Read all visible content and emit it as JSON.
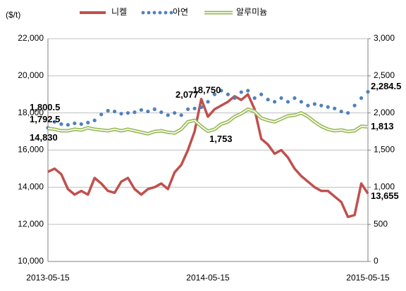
{
  "chart_data": {
    "type": "line",
    "y_axis_label": "($/t)",
    "categories": [
      "2013-05-15",
      null,
      null,
      null,
      null,
      null,
      null,
      null,
      null,
      null,
      null,
      null,
      null,
      null,
      null,
      null,
      null,
      null,
      null,
      null,
      null,
      null,
      null,
      null,
      "2014-05-15",
      null,
      null,
      null,
      null,
      null,
      null,
      null,
      null,
      null,
      null,
      null,
      null,
      null,
      null,
      null,
      null,
      null,
      null,
      null,
      null,
      null,
      null,
      null,
      "2015-05-15"
    ],
    "series": [
      {
        "name": "니켈",
        "color": "#c0504d",
        "style": "thick",
        "values": [
          14830,
          15000,
          14700,
          13900,
          13600,
          13800,
          13600,
          14500,
          14200,
          13800,
          13700,
          14300,
          14500,
          13900,
          13600,
          13900,
          14000,
          14200,
          13900,
          14800,
          15200,
          16000,
          17000,
          18750,
          17800,
          18200,
          18400,
          18600,
          18900,
          18700,
          19000,
          18200,
          16600,
          16300,
          15800,
          16000,
          15600,
          15000,
          14600,
          14300,
          14000,
          13800,
          13800,
          13500,
          13200,
          12400,
          12500,
          14200,
          13655
        ],
        "value_labels": [
          "14,830",
          null,
          null,
          null,
          null,
          null,
          null,
          null,
          null,
          null,
          null,
          null,
          null,
          null,
          null,
          null,
          null,
          null,
          null,
          null,
          null,
          null,
          null,
          "18,750",
          null,
          null,
          null,
          null,
          null,
          null,
          null,
          null,
          null,
          null,
          null,
          null,
          null,
          null,
          null,
          null,
          null,
          null,
          null,
          null,
          null,
          null,
          null,
          null,
          "13,655"
        ]
      },
      {
        "name": "아연",
        "color": "#4f81bd",
        "style": "dots",
        "axis": "y2",
        "values": [
          1800.5,
          1880,
          1850,
          1840,
          1860,
          1850,
          1870,
          1900,
          1980,
          2030,
          2020,
          1990,
          2000,
          2010,
          2040,
          2020,
          2050,
          2010,
          1970,
          2000,
          1970,
          2050,
          2060,
          2077,
          2150,
          2250,
          2300,
          2250,
          2200,
          2280,
          2300,
          2200,
          2250,
          2180,
          2150,
          2200,
          2150,
          2200,
          2150,
          2100,
          2120,
          2100,
          2080,
          2060,
          2020,
          2000,
          2100,
          2200,
          2284.5
        ],
        "value_labels": [
          "1,800.5",
          null,
          null,
          null,
          null,
          null,
          null,
          null,
          null,
          null,
          null,
          null,
          null,
          null,
          null,
          null,
          null,
          null,
          null,
          null,
          null,
          null,
          null,
          "2,077",
          null,
          null,
          null,
          null,
          null,
          null,
          null,
          null,
          null,
          null,
          null,
          null,
          null,
          null,
          null,
          null,
          null,
          null,
          null,
          null,
          null,
          null,
          null,
          null,
          "2,284.5"
        ]
      },
      {
        "name": "알루미늄",
        "color": "#9bbb59",
        "style": "double",
        "axis": "y2",
        "values": [
          1792.5,
          1780,
          1760,
          1760,
          1780,
          1770,
          1800,
          1780,
          1770,
          1760,
          1780,
          1760,
          1780,
          1760,
          1740,
          1720,
          1750,
          1760,
          1740,
          1730,
          1780,
          1880,
          1900,
          1820,
          1753,
          1780,
          1850,
          1880,
          1950,
          1990,
          2050,
          2020,
          1930,
          1900,
          1880,
          1920,
          1960,
          1970,
          2000,
          1950,
          1880,
          1820,
          1780,
          1760,
          1770,
          1750,
          1760,
          1820,
          1813
        ],
        "value_labels": [
          "1,792.5",
          null,
          null,
          null,
          null,
          null,
          null,
          null,
          null,
          null,
          null,
          null,
          null,
          null,
          null,
          null,
          null,
          null,
          null,
          null,
          null,
          null,
          null,
          null,
          "1,753",
          null,
          null,
          null,
          null,
          null,
          null,
          null,
          null,
          null,
          null,
          null,
          null,
          null,
          null,
          null,
          null,
          null,
          null,
          null,
          null,
          null,
          null,
          null,
          "1,813"
        ]
      }
    ],
    "ylim": [
      10000,
      22000
    ],
    "yticks": [
      {
        "value": 10000,
        "label": "10,000"
      },
      {
        "value": 12000,
        "label": "12,000"
      },
      {
        "value": 14000,
        "label": "14,000"
      },
      {
        "value": 16000,
        "label": "16,000"
      },
      {
        "value": 18000,
        "label": "18,000"
      },
      {
        "value": 20000,
        "label": "20,000"
      },
      {
        "value": 22000,
        "label": "22,000"
      }
    ],
    "y2lim": [
      0,
      3000
    ],
    "y2ticks": [
      0,
      500,
      {
        "value": 1000,
        "label": "1,000"
      },
      {
        "value": 1500,
        "label": "1,500"
      },
      {
        "value": 2000,
        "label": "2,000"
      },
      {
        "value": 2500,
        "label": "2,500"
      },
      {
        "value": 3000,
        "label": "3,000"
      }
    ],
    "grid": true,
    "legend": "top"
  }
}
